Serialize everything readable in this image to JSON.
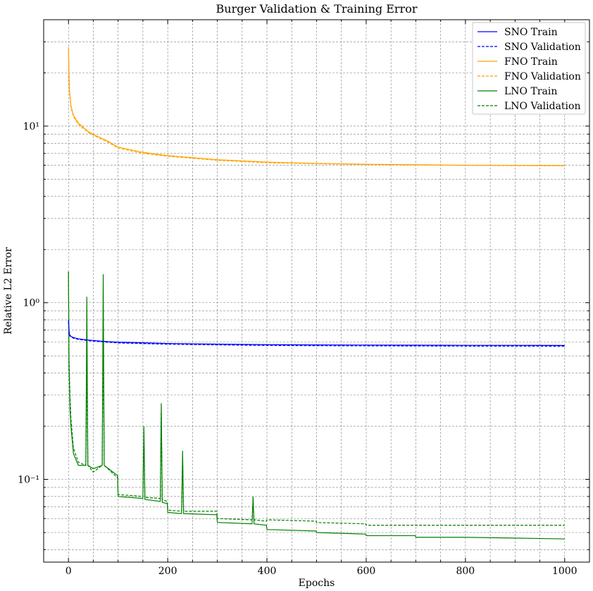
{
  "chart_data": {
    "type": "line",
    "title": "Burger Validation & Training Error",
    "xlabel": "Epochs",
    "ylabel": "Relative L2 Error",
    "xlim": [
      -50,
      1050
    ],
    "ylim": [
      0.034,
      40
    ],
    "yscale": "log",
    "grid": true,
    "legend_position": "top-right",
    "x_ticks": [
      0,
      200,
      400,
      600,
      800,
      1000
    ],
    "x_tick_labels": [
      "0",
      "200",
      "400",
      "600",
      "800",
      "1000"
    ],
    "y_ticks": [
      0.1,
      1,
      10
    ],
    "y_tick_labels": [
      "10⁻¹",
      "10⁰",
      "10¹"
    ],
    "series": [
      {
        "name": "SNO Train",
        "color": "#0000ff",
        "dash": "solid",
        "x": [
          0,
          1,
          2,
          5,
          10,
          20,
          40,
          60,
          80,
          100,
          150,
          200,
          300,
          400,
          500,
          600,
          700,
          800,
          900,
          1000
        ],
        "y": [
          0.8,
          0.7,
          0.66,
          0.645,
          0.635,
          0.625,
          0.615,
          0.608,
          0.602,
          0.598,
          0.593,
          0.588,
          0.583,
          0.579,
          0.577,
          0.576,
          0.575,
          0.574,
          0.574,
          0.573
        ]
      },
      {
        "name": "SNO Validation",
        "color": "#0000ff",
        "dash": "dashed",
        "x": [
          0,
          1,
          2,
          5,
          10,
          20,
          40,
          60,
          80,
          100,
          150,
          200,
          300,
          400,
          500,
          600,
          700,
          800,
          900,
          1000
        ],
        "y": [
          0.78,
          0.69,
          0.655,
          0.64,
          0.63,
          0.62,
          0.61,
          0.603,
          0.597,
          0.592,
          0.587,
          0.582,
          0.577,
          0.573,
          0.571,
          0.57,
          0.569,
          0.568,
          0.568,
          0.567
        ]
      },
      {
        "name": "FNO Train",
        "color": "#ffa500",
        "dash": "solid",
        "x": [
          0,
          1,
          2,
          5,
          10,
          20,
          40,
          60,
          80,
          100,
          150,
          200,
          300,
          400,
          500,
          600,
          700,
          800,
          900,
          1000
        ],
        "y": [
          28,
          20,
          16,
          13,
          11.5,
          10.4,
          9.3,
          8.7,
          8.2,
          7.6,
          7.1,
          6.8,
          6.45,
          6.25,
          6.15,
          6.08,
          6.04,
          6.0,
          5.99,
          5.98
        ]
      },
      {
        "name": "FNO Validation",
        "color": "#ffa500",
        "dash": "dashed",
        "x": [
          0,
          1,
          2,
          5,
          10,
          20,
          40,
          60,
          80,
          100,
          150,
          200,
          300,
          400,
          500,
          600,
          700,
          800,
          900,
          1000
        ],
        "y": [
          27,
          19.5,
          15.6,
          12.8,
          11.3,
          10.2,
          9.2,
          8.6,
          8.1,
          7.5,
          7.0,
          6.75,
          6.4,
          6.2,
          6.12,
          6.06,
          6.02,
          5.99,
          5.97,
          5.96
        ]
      },
      {
        "name": "LNO Train",
        "color": "#008000",
        "dash": "solid",
        "x": [
          0,
          1,
          3,
          5,
          10,
          20,
          35,
          37,
          39,
          50,
          68,
          70,
          72,
          99,
          100,
          150,
          152,
          154,
          185,
          187,
          189,
          199,
          200,
          228,
          230,
          232,
          299,
          300,
          370,
          372,
          374,
          399,
          400,
          499,
          500,
          599,
          600,
          699,
          700,
          800,
          900,
          1000
        ],
        "y": [
          1.5,
          0.45,
          0.25,
          0.2,
          0.14,
          0.12,
          0.12,
          1.08,
          0.12,
          0.115,
          0.12,
          1.45,
          0.12,
          0.105,
          0.08,
          0.078,
          0.2,
          0.077,
          0.075,
          0.27,
          0.074,
          0.073,
          0.065,
          0.064,
          0.145,
          0.064,
          0.063,
          0.057,
          0.056,
          0.08,
          0.056,
          0.055,
          0.052,
          0.051,
          0.05,
          0.049,
          0.048,
          0.048,
          0.047,
          0.047,
          0.0465,
          0.046
        ]
      },
      {
        "name": "LNO Validation",
        "color": "#008000",
        "dash": "dashed",
        "x": [
          0,
          1,
          3,
          5,
          10,
          20,
          35,
          37,
          39,
          50,
          68,
          70,
          72,
          99,
          100,
          150,
          152,
          154,
          185,
          187,
          189,
          199,
          200,
          228,
          230,
          232,
          299,
          300,
          370,
          372,
          374,
          399,
          400,
          499,
          500,
          599,
          600,
          699,
          700,
          800,
          900,
          1000
        ],
        "y": [
          1.5,
          0.5,
          0.3,
          0.22,
          0.15,
          0.125,
          0.12,
          0.45,
          0.12,
          0.11,
          0.12,
          0.7,
          0.12,
          0.102,
          0.082,
          0.08,
          0.18,
          0.079,
          0.078,
          0.24,
          0.077,
          0.075,
          0.067,
          0.066,
          0.13,
          0.066,
          0.066,
          0.06,
          0.059,
          0.075,
          0.059,
          0.058,
          0.059,
          0.058,
          0.057,
          0.056,
          0.055,
          0.055,
          0.055,
          0.055,
          0.055,
          0.055
        ]
      }
    ]
  }
}
